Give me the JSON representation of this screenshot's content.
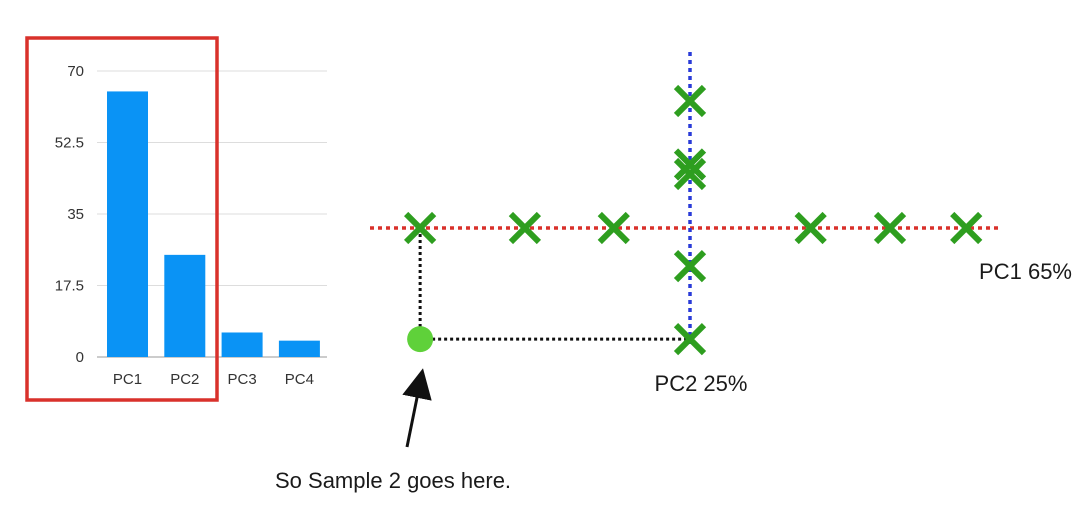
{
  "chart_data": [
    {
      "type": "bar",
      "categories": [
        "PC1",
        "PC2",
        "PC3",
        "PC4"
      ],
      "values": [
        65,
        25,
        6,
        4
      ],
      "y_ticks": [
        "0",
        "17.5",
        "35",
        "52.5",
        "70"
      ],
      "ylim": [
        0,
        70
      ],
      "grid": true,
      "highlight": [
        "PC1",
        "PC2"
      ]
    },
    {
      "type": "scatter",
      "pc1_points": [
        -4.25,
        -2.6,
        -1.2,
        1.9,
        3.15,
        4.35
      ],
      "pc2_points": [
        2.0,
        1.0,
        0.85,
        -0.6,
        -1.75
      ],
      "sample2": {
        "pc1": -4.25,
        "pc2": -1.75
      },
      "pc1_label": "PC1 65%",
      "pc2_label": "PC2 25%"
    }
  ],
  "colors": {
    "bar": "#0a93f5",
    "highlight_box": "#d9312b",
    "pc1_axis": "#d9312b",
    "pc2_axis": "#2a3bd8",
    "markers": "#2e9e1f",
    "sample_point": "#5fd13a"
  },
  "annotation": {
    "text": "So Sample 2 goes here."
  }
}
